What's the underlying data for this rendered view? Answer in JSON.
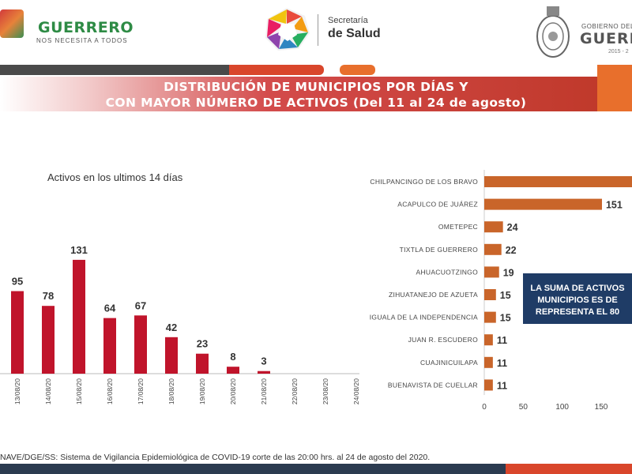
{
  "header": {
    "state_logo_name": "GUERRERO",
    "state_logo_tagline": "NOS NECESITA A TODOS",
    "health_label_small": "Secretaría",
    "health_label": "de Salud",
    "gov_label_small": "GOBIERNO DEL",
    "gov_label": "GUERRE",
    "gov_years": "2015 - 2"
  },
  "colors": {
    "title_red": "#c0392b",
    "bar_red": "#c0142b",
    "bar_orange": "#c9652a",
    "navy": "#1f3c66",
    "accent_orange": "#e86f2c"
  },
  "title": {
    "line1": "DISTRIBUCIÓN DE MUNICIPIOS POR DÍAS Y",
    "line2": "CON MAYOR NÚMERO DE ACTIVOS (Del 11 al 24 de agosto)"
  },
  "callout": {
    "line1": "LA SUMA DE ACTIVOS",
    "line2": "MUNICIPIOS ES DE",
    "line3": "REPRESENTA EL 80"
  },
  "source": "NAVE/DGE/SS: Sistema de Vigilancia Epidemiológica de COVID-19 corte de las 20:00 hrs. al 24 de agosto del 2020.",
  "chart_data": [
    {
      "type": "bar",
      "title": "Activos en los ultimos 14 días",
      "categories": [
        "13/08/20",
        "14/08/20",
        "15/08/20",
        "16/08/20",
        "17/08/20",
        "18/08/20",
        "19/08/20",
        "20/08/20",
        "21/08/20",
        "22/08/20",
        "23/08/20",
        "24/08/20"
      ],
      "values": [
        95,
        78,
        131,
        64,
        67,
        42,
        23,
        8,
        3,
        null,
        null,
        null
      ],
      "ylim": [
        0,
        150
      ],
      "grid": false,
      "color": "#c0142b"
    },
    {
      "type": "bar",
      "orientation": "horizontal",
      "categories": [
        "CHILPANCINGO DE LOS BRAVO",
        "ACAPULCO DE JUÁREZ",
        "OMETEPEC",
        "TIXTLA DE GUERRERO",
        "AHUACUOTZINGO",
        "ZIHUATANEJO DE AZUETA",
        "IGUALA DE LA INDEPENDENCIA",
        "JUAN R. ESCUDERO",
        "CUAJINICUILAPA",
        "BUENAVISTA DE CUELLAR"
      ],
      "values": [
        null,
        151,
        24,
        22,
        19,
        15,
        15,
        11,
        11,
        11
      ],
      "xticks": [
        "0",
        "50",
        "100",
        "150"
      ],
      "xlim": [
        0,
        190
      ],
      "grid": false,
      "color": "#c9652a"
    }
  ]
}
